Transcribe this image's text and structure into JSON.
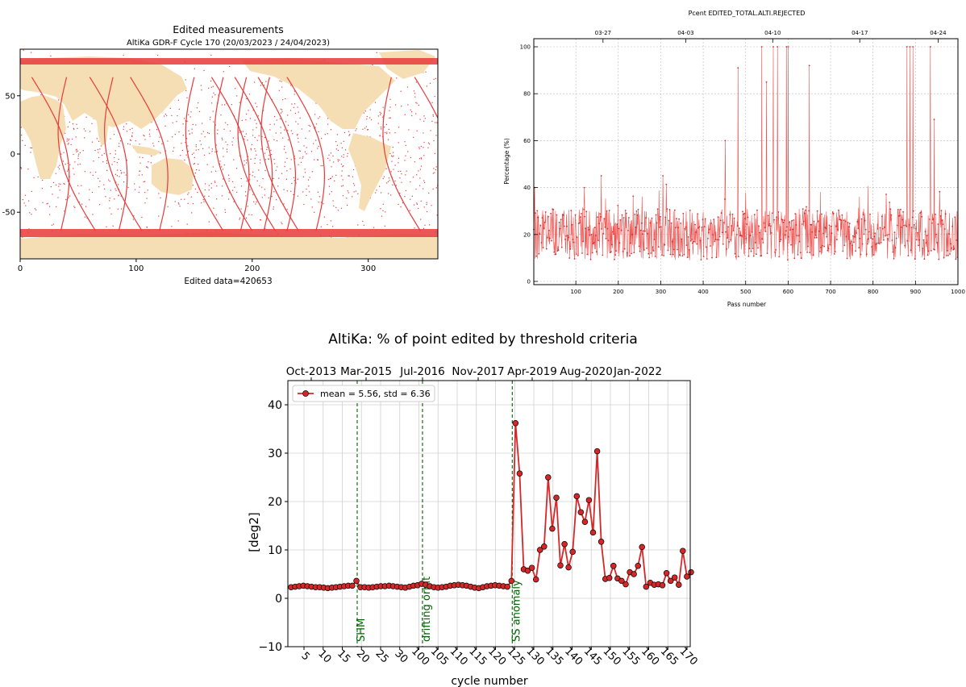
{
  "map_panel": {
    "title": "Edited measurements",
    "subtitle": "AltiKa GDR-F Cycle 170 (20/03/2023 / 24/04/2023)",
    "footer": "Edited data=420653",
    "x_ticks": [
      "0",
      "100",
      "200",
      "300"
    ],
    "y_ticks": [
      "50",
      "0",
      "-50"
    ],
    "land_color": "#f5deb3",
    "edit_color": "#e83a3a"
  },
  "pass_panel": {
    "title": "Pcent EDITED_TOTAL.ALTI.REJECTED",
    "xlabel": "Pass number",
    "ylabel": "Percentage (%)",
    "x_ticks": [
      "100",
      "200",
      "300",
      "400",
      "500",
      "600",
      "700",
      "800",
      "900",
      "1000"
    ],
    "y_ticks": [
      "0",
      "20",
      "40",
      "60",
      "80",
      "100"
    ],
    "top_ticks": [
      "03-27",
      "04-03",
      "04-10",
      "04-17",
      "04-24"
    ]
  },
  "cycle_panel": {
    "title": "AltiKa: % of point edited by threshold criteria",
    "xlabel": "cycle number",
    "ylabel": "[deg2]",
    "legend": "mean = 5.56, std = 6.36",
    "y_ticks": [
      "40",
      "30",
      "20",
      "10",
      "0",
      "−10"
    ],
    "x_ticks": [
      "5",
      "10",
      "15",
      "20",
      "25",
      "30",
      "100",
      "105",
      "110",
      "115",
      "120",
      "125",
      "130",
      "135",
      "140",
      "145",
      "150",
      "155",
      "160",
      "165",
      "170"
    ],
    "top_ticks": [
      "Oct-2013",
      "Mar-2015",
      "Jul-2016",
      "Nov-2017",
      "Apr-2019",
      "Aug-2020",
      "Jan-2022"
    ],
    "events": [
      "SHM",
      "drifting orbit",
      "SS anomaly"
    ],
    "line_color": "#d62728",
    "event_color": "#006400"
  },
  "chart_data": [
    {
      "type": "scatter",
      "title": "Edited measurements",
      "subtitle": "AltiKa GDR-F Cycle 170 (20/03/2023 / 24/04/2023)",
      "xlim": [
        0,
        360
      ],
      "ylim": [
        -90,
        90
      ],
      "annotation": "Edited data=420653"
    },
    {
      "type": "line",
      "title": "Pcent EDITED_TOTAL.ALTI.REJECTED",
      "xlabel": "Pass number",
      "ylabel": "Percentage (%)",
      "xlim": [
        1,
        1000
      ],
      "ylim": [
        0,
        100
      ],
      "grid": true,
      "top_axis": [
        "03-27",
        "04-03",
        "04-10",
        "04-17",
        "04-24"
      ],
      "peaks": [
        {
          "x": 3,
          "y": 40
        },
        {
          "x": 120,
          "y": 40
        },
        {
          "x": 160,
          "y": 45
        },
        {
          "x": 305,
          "y": 45
        },
        {
          "x": 452,
          "y": 60
        },
        {
          "x": 482,
          "y": 91
        },
        {
          "x": 538,
          "y": 100
        },
        {
          "x": 549,
          "y": 85
        },
        {
          "x": 565,
          "y": 100
        },
        {
          "x": 575,
          "y": 100
        },
        {
          "x": 596,
          "y": 100
        },
        {
          "x": 600,
          "y": 100
        },
        {
          "x": 650,
          "y": 92
        },
        {
          "x": 880,
          "y": 100
        },
        {
          "x": 887,
          "y": 100
        },
        {
          "x": 894,
          "y": 100
        },
        {
          "x": 935,
          "y": 100
        },
        {
          "x": 944,
          "y": 69
        }
      ],
      "baseline_mean": 20
    },
    {
      "type": "line",
      "title": "AltiKa: % of point edited by threshold criteria",
      "xlabel": "cycle number",
      "ylabel": "[deg2]",
      "ylim": [
        -10,
        45
      ],
      "grid": true,
      "legend": "top-left",
      "series": [
        {
          "name": "mean = 5.56, std = 6.36",
          "values": [
            2.3,
            2.4,
            2.5,
            2.6,
            2.5,
            2.4,
            2.3,
            2.3,
            2.2,
            2.1,
            2.2,
            2.3,
            2.4,
            2.5,
            2.6,
            2.6,
            3.6,
            2.3,
            2.3,
            2.2,
            2.3,
            2.4,
            2.5,
            2.5,
            2.6,
            2.5,
            2.4,
            2.3,
            2.2,
            2.4,
            2.6,
            2.7,
            3.0,
            2.8,
            2.5,
            2.3,
            2.2,
            2.3,
            2.4,
            2.6,
            2.7,
            2.8,
            2.7,
            2.6,
            2.4,
            2.2,
            2.1,
            2.3,
            2.5,
            2.6,
            2.7,
            2.6,
            2.5,
            2.4,
            3.6,
            36.2,
            25.8,
            6.0,
            5.7,
            6.3,
            3.9,
            10.0,
            10.7,
            25.0,
            14.4,
            20.8,
            6.8,
            11.2,
            6.4,
            9.6,
            21.1,
            17.8,
            15.8,
            20.3,
            13.6,
            30.4,
            11.7,
            4.0,
            4.2,
            6.7,
            4.1,
            3.6,
            2.9,
            5.4,
            5.0,
            6.7,
            10.6,
            2.4,
            3.2,
            2.8,
            2.9,
            2.7,
            5.2,
            3.6,
            4.3,
            2.8,
            9.8,
            4.5,
            5.4
          ]
        }
      ],
      "events": [
        {
          "label": "SHM",
          "after_point": 16
        },
        {
          "label": "drifting orbit",
          "after_point": 32
        },
        {
          "label": "SS anomaly",
          "after_point": 54
        }
      ],
      "xticks": [
        "5",
        "10",
        "15",
        "20",
        "25",
        "30",
        "100",
        "105",
        "110",
        "115",
        "120",
        "125",
        "130",
        "135",
        "140",
        "145",
        "150",
        "155",
        "160",
        "165",
        "170"
      ],
      "top_axis": [
        "Oct-2013",
        "Mar-2015",
        "Jul-2016",
        "Nov-2017",
        "Apr-2019",
        "Aug-2020",
        "Jan-2022"
      ]
    }
  ]
}
